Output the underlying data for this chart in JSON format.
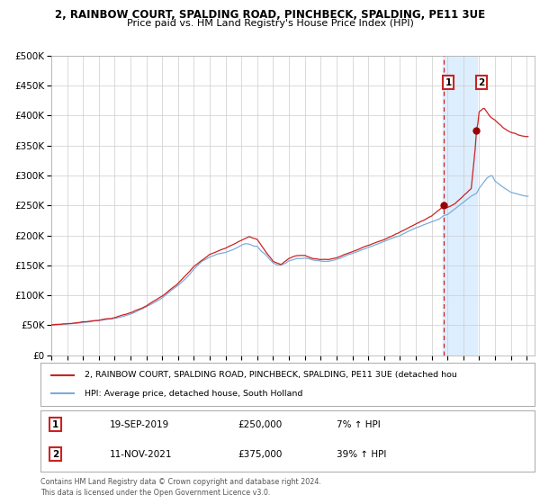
{
  "title_line1": "2, RAINBOW COURT, SPALDING ROAD, PINCHBECK, SPALDING, PE11 3UE",
  "title_line2": "Price paid vs. HM Land Registry's House Price Index (HPI)",
  "ylim": [
    0,
    500000
  ],
  "yticks": [
    0,
    50000,
    100000,
    150000,
    200000,
    250000,
    300000,
    350000,
    400000,
    450000,
    500000
  ],
  "ytick_labels": [
    "£0",
    "£50K",
    "£100K",
    "£150K",
    "£200K",
    "£250K",
    "£300K",
    "£350K",
    "£400K",
    "£450K",
    "£500K"
  ],
  "hpi_color": "#7aaedc",
  "property_color": "#cc2222",
  "background_color": "#ffffff",
  "grid_color": "#cccccc",
  "shaded_region_color": "#ddeeff",
  "transaction1_date": "19-SEP-2019",
  "transaction1_price": 250000,
  "transaction1_price_str": "£250,000",
  "transaction1_pct": "7%",
  "transaction1_label": "1",
  "transaction2_date": "11-NOV-2021",
  "transaction2_price": 375000,
  "transaction2_price_str": "£375,000",
  "transaction2_label": "2",
  "transaction2_pct": "39%",
  "legend_property": "2, RAINBOW COURT, SPALDING ROAD, PINCHBECK, SPALDING, PE11 3UE (detached hou",
  "legend_hpi": "HPI: Average price, detached house, South Holland",
  "footer": "Contains HM Land Registry data © Crown copyright and database right 2024.\nThis data is licensed under the Open Government Licence v3.0.",
  "transaction1_year": 2019.72,
  "transaction2_year": 2021.86,
  "shade_start": 2019.72,
  "shade_end": 2021.86,
  "xlim_start": 1995.0,
  "xlim_end": 2025.5,
  "hpi_waypoints_t": [
    1995.0,
    1995.5,
    1996.0,
    1996.5,
    1997.0,
    1997.5,
    1998.0,
    1998.5,
    1999.0,
    1999.5,
    2000.0,
    2000.5,
    2001.0,
    2001.5,
    2002.0,
    2002.5,
    2003.0,
    2003.5,
    2004.0,
    2004.5,
    2005.0,
    2005.5,
    2006.0,
    2006.5,
    2007.0,
    2007.25,
    2007.5,
    2007.75,
    2008.0,
    2008.25,
    2008.5,
    2008.75,
    2009.0,
    2009.25,
    2009.5,
    2009.75,
    2010.0,
    2010.25,
    2010.5,
    2010.75,
    2011.0,
    2011.25,
    2011.5,
    2011.75,
    2012.0,
    2012.25,
    2012.5,
    2012.75,
    2013.0,
    2013.25,
    2013.5,
    2013.75,
    2014.0,
    2014.5,
    2015.0,
    2015.5,
    2016.0,
    2016.5,
    2017.0,
    2017.5,
    2018.0,
    2018.5,
    2019.0,
    2019.5,
    2019.72,
    2020.0,
    2020.5,
    2021.0,
    2021.5,
    2021.86,
    2022.0,
    2022.5,
    2022.8,
    2023.0,
    2023.5,
    2024.0,
    2024.5,
    2025.0
  ],
  "hpi_waypoints_v": [
    50000,
    51000,
    52000,
    53500,
    55000,
    57000,
    59000,
    61000,
    63000,
    66000,
    70000,
    76000,
    82000,
    89000,
    97000,
    108000,
    118000,
    130000,
    145000,
    158000,
    165000,
    170000,
    173000,
    178000,
    185000,
    188000,
    187000,
    184000,
    183000,
    175000,
    170000,
    162000,
    155000,
    152000,
    152000,
    154000,
    158000,
    160000,
    162000,
    162000,
    163000,
    162000,
    160000,
    159000,
    158000,
    157500,
    157000,
    158000,
    160000,
    162000,
    165000,
    168000,
    170000,
    175000,
    180000,
    185000,
    190000,
    195000,
    200000,
    207000,
    213000,
    218000,
    223000,
    228000,
    233000,
    235000,
    245000,
    255000,
    265000,
    270000,
    278000,
    295000,
    300000,
    290000,
    280000,
    272000,
    268000,
    265000
  ],
  "prop_waypoints_t": [
    1995.0,
    1996.0,
    1997.0,
    1998.0,
    1999.0,
    2000.0,
    2001.0,
    2002.0,
    2003.0,
    2004.0,
    2005.0,
    2006.0,
    2007.0,
    2007.5,
    2008.0,
    2008.5,
    2009.0,
    2009.5,
    2010.0,
    2010.5,
    2011.0,
    2011.5,
    2012.0,
    2012.5,
    2013.0,
    2013.5,
    2014.0,
    2015.0,
    2016.0,
    2017.0,
    2018.0,
    2019.0,
    2019.72,
    2020.0,
    2020.5,
    2021.0,
    2021.5,
    2021.86,
    2022.0,
    2022.3,
    2022.7,
    2023.0,
    2023.5,
    2024.0,
    2024.5,
    2025.0
  ],
  "prop_waypoints_v": [
    51000,
    53000,
    56000,
    60000,
    64000,
    72000,
    84000,
    100000,
    120000,
    148000,
    168000,
    178000,
    193000,
    200000,
    195000,
    175000,
    158000,
    153000,
    163000,
    168000,
    168000,
    163000,
    162000,
    162000,
    165000,
    170000,
    175000,
    185000,
    195000,
    207000,
    220000,
    235000,
    250000,
    248000,
    255000,
    268000,
    280000,
    375000,
    408000,
    415000,
    400000,
    395000,
    383000,
    375000,
    370000,
    368000
  ]
}
